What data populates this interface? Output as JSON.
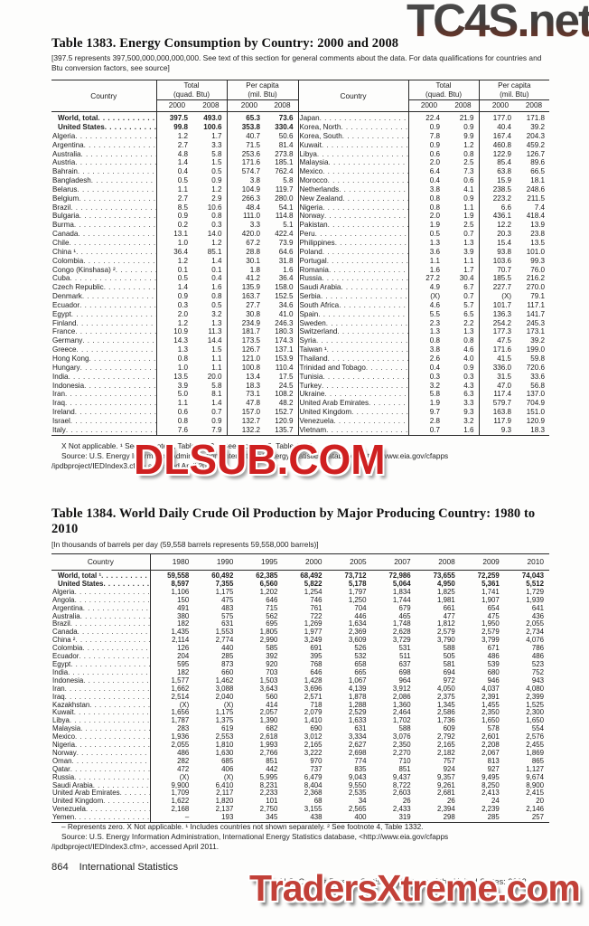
{
  "watermarks": {
    "top": "TC4S.net",
    "middle": "DLSUB.COM",
    "bottom": "TradersXtreme.com"
  },
  "t1383": {
    "title": "Table 1383. Energy Consumption by Country: 2000 and 2008",
    "bracket": "[397.5 represents 397,500,000,000,000,000. See text of this section for general comments about the data. For data qualifications for countries and Btu conversion factors, see source]",
    "header": {
      "country": "Country",
      "total1": "Total",
      "total2": "(quad. Btu)",
      "pc1": "Per capita",
      "pc2": "(mil. Btu)",
      "years": [
        "2000",
        "2008"
      ]
    },
    "rows_left": [
      [
        "World, total",
        "397.5",
        "493.0",
        "65.3",
        "73.6"
      ],
      [
        "United States",
        "99.8",
        "100.6",
        "353.8",
        "330.4"
      ],
      [
        "Algeria",
        "1.2",
        "1.7",
        "40.7",
        "50.6"
      ],
      [
        "Argentina",
        "2.7",
        "3.3",
        "71.5",
        "81.4"
      ],
      [
        "Australia",
        "4.8",
        "5.8",
        "253.6",
        "273.8"
      ],
      [
        "Austria",
        "1.4",
        "1.5",
        "171.6",
        "185.1"
      ],
      [
        "Bahrain",
        "0.4",
        "0.5",
        "574.7",
        "762.4"
      ],
      [
        "Bangladesh",
        "0.5",
        "0.9",
        "3.8",
        "5.8"
      ],
      [
        "Belarus",
        "1.1",
        "1.2",
        "104.9",
        "119.7"
      ],
      [
        "Belgium",
        "2.7",
        "2.9",
        "266.3",
        "280.0"
      ],
      [
        "Brazil",
        "8.5",
        "10.6",
        "48.4",
        "54.1"
      ],
      [
        "Bulgaria",
        "0.9",
        "0.8",
        "111.0",
        "114.8"
      ],
      [
        "Burma",
        "0.2",
        "0.3",
        "3.3",
        "5.1"
      ],
      [
        "Canada",
        "13.1",
        "14.0",
        "420.0",
        "422.4"
      ],
      [
        "Chile",
        "1.0",
        "1.2",
        "67.2",
        "73.9"
      ],
      [
        "China ¹",
        "36.4",
        "85.1",
        "28.8",
        "64.6"
      ],
      [
        "Colombia",
        "1.2",
        "1.4",
        "30.1",
        "31.8"
      ],
      [
        "Congo (Kinshasa) ²",
        "0.1",
        "0.1",
        "1.8",
        "1.6"
      ],
      [
        "Cuba",
        "0.5",
        "0.4",
        "41.2",
        "36.4"
      ],
      [
        "Czech Republic",
        "1.4",
        "1.6",
        "135.9",
        "158.0"
      ],
      [
        "Denmark",
        "0.9",
        "0.8",
        "163.7",
        "152.5"
      ],
      [
        "Ecuador",
        "0.3",
        "0.5",
        "27.7",
        "34.6"
      ],
      [
        "Egypt",
        "2.0",
        "3.2",
        "30.8",
        "41.0"
      ],
      [
        "Finland",
        "1.2",
        "1.3",
        "234.9",
        "246.3"
      ],
      [
        "France",
        "10.9",
        "11.3",
        "181.7",
        "180.3"
      ],
      [
        "Germany",
        "14.3",
        "14.4",
        "173.5",
        "174.3"
      ],
      [
        "Greece",
        "1.3",
        "1.5",
        "126.7",
        "137.1"
      ],
      [
        "Hong Kong",
        "0.8",
        "1.1",
        "121.0",
        "153.9"
      ],
      [
        "Hungary",
        "1.0",
        "1.1",
        "100.8",
        "110.4"
      ],
      [
        "India",
        "13.5",
        "20.0",
        "13.4",
        "17.5"
      ],
      [
        "Indonesia",
        "3.9",
        "5.8",
        "18.3",
        "24.5"
      ],
      [
        "Iran",
        "5.0",
        "8.1",
        "73.1",
        "108.2"
      ],
      [
        "Iraq",
        "1.1",
        "1.4",
        "47.8",
        "48.2"
      ],
      [
        "Ireland",
        "0.6",
        "0.7",
        "157.0",
        "152.7"
      ],
      [
        "Israel",
        "0.8",
        "0.9",
        "132.7",
        "120.9"
      ],
      [
        "Italy",
        "7.6",
        "7.9",
        "132.2",
        "135.7"
      ]
    ],
    "rows_right": [
      [
        "Japan",
        "22.4",
        "21.9",
        "177.0",
        "171.8"
      ],
      [
        "Korea, North",
        "0.9",
        "0.9",
        "40.4",
        "39.2"
      ],
      [
        "Korea, South",
        "7.8",
        "9.9",
        "167.4",
        "204.3"
      ],
      [
        "Kuwait",
        "0.9",
        "1.2",
        "460.8",
        "459.2"
      ],
      [
        "Libya",
        "0.6",
        "0.8",
        "122.9",
        "126.7"
      ],
      [
        "Malaysia",
        "2.0",
        "2.5",
        "85.4",
        "89.6"
      ],
      [
        "Mexico",
        "6.4",
        "7.3",
        "63.8",
        "66.5"
      ],
      [
        "Morocco",
        "0.4",
        "0.6",
        "15.9",
        "18.1"
      ],
      [
        "Netherlands",
        "3.8",
        "4.1",
        "238.5",
        "248.6"
      ],
      [
        "New Zealand",
        "0.8",
        "0.9",
        "223.2",
        "211.5"
      ],
      [
        "Nigeria",
        "0.8",
        "1.1",
        "6.6",
        "7.4"
      ],
      [
        "Norway",
        "2.0",
        "1.9",
        "436.1",
        "418.4"
      ],
      [
        "Pakistan",
        "1.9",
        "2.5",
        "12.2",
        "13.9"
      ],
      [
        "Peru",
        "0.5",
        "0.7",
        "20.3",
        "23.8"
      ],
      [
        "Philippines",
        "1.3",
        "1.3",
        "15.4",
        "13.5"
      ],
      [
        "Poland",
        "3.6",
        "3.9",
        "93.8",
        "101.0"
      ],
      [
        "Portugal",
        "1.1",
        "1.1",
        "103.6",
        "99.3"
      ],
      [
        "Romania",
        "1.6",
        "1.7",
        "70.7",
        "76.0"
      ],
      [
        "Russia",
        "27.2",
        "30.4",
        "185.5",
        "216.2"
      ],
      [
        "Saudi Arabia",
        "4.9",
        "6.7",
        "227.7",
        "270.0"
      ],
      [
        "Serbia",
        "(X)",
        "0.7",
        "(X)",
        "79.1"
      ],
      [
        "South Africa",
        "4.6",
        "5.7",
        "101.7",
        "117.1"
      ],
      [
        "Spain",
        "5.5",
        "6.5",
        "136.3",
        "141.7"
      ],
      [
        "Sweden",
        "2.3",
        "2.2",
        "254.2",
        "245.3"
      ],
      [
        "Switzerland",
        "1.3",
        "1.3",
        "177.3",
        "173.1"
      ],
      [
        "Syria",
        "0.8",
        "0.8",
        "47.5",
        "39.2"
      ],
      [
        "Taiwan ¹",
        "3.8",
        "4.6",
        "171.6",
        "199.0"
      ],
      [
        "Thailand",
        "2.6",
        "4.0",
        "41.5",
        "59.8"
      ],
      [
        "Trinidad and Tobago",
        "0.4",
        "0.9",
        "336.0",
        "720.6"
      ],
      [
        "Tunisia",
        "0.3",
        "0.3",
        "31.5",
        "33.6"
      ],
      [
        "Turkey",
        "3.2",
        "4.3",
        "47.0",
        "56.8"
      ],
      [
        "Ukraine",
        "5.8",
        "6.3",
        "117.4",
        "137.0"
      ],
      [
        "United Arab Emirates",
        "1.9",
        "3.3",
        "579.7",
        "704.9"
      ],
      [
        "United Kingdom",
        "9.7",
        "9.3",
        "163.8",
        "151.0"
      ],
      [
        "Venezuela",
        "2.8",
        "3.2",
        "117.9",
        "120.9"
      ],
      [
        "Vietnam",
        "0.7",
        "1.6",
        "9.3",
        "18.3"
      ]
    ],
    "footnote": "X Not applicable. ¹ See footnote 4, Table 1332. ² See footnote 5, Table 1332.",
    "source_l1": "Source: U.S. Energy Information Administration, International Energy Statistics database, <http://www.eia.gov/cfapps",
    "source_l2": "/ipdbproject/IEDIndex3.cfm> accessed April 2011."
  },
  "t1384": {
    "title": "Table 1384. World Daily Crude Oil Production by Major Producing Country: 1980 to 2010",
    "bracket": "[In thousands of barrels per day (59,558 barrels represents 59,558,000 barrels)]",
    "country_header": "Country",
    "years": [
      "1980",
      "1990",
      "1995",
      "2000",
      "2005",
      "2007",
      "2008",
      "2009",
      "2010"
    ],
    "rows": [
      [
        "World, total ¹",
        "59,558",
        "60,492",
        "62,385",
        "68,492",
        "73,712",
        "72,986",
        "73,655",
        "72,259",
        "74,043"
      ],
      [
        "United States",
        "8,597",
        "7,355",
        "6,560",
        "5,822",
        "5,178",
        "5,064",
        "4,950",
        "5,361",
        "5,512"
      ],
      [
        "Algeria",
        "1,106",
        "1,175",
        "1,202",
        "1,254",
        "1,797",
        "1,834",
        "1,825",
        "1,741",
        "1,729"
      ],
      [
        "Angola",
        "150",
        "475",
        "646",
        "746",
        "1,250",
        "1,744",
        "1,981",
        "1,907",
        "1,939"
      ],
      [
        "Argentina",
        "491",
        "483",
        "715",
        "761",
        "704",
        "679",
        "661",
        "654",
        "641"
      ],
      [
        "Australia",
        "380",
        "575",
        "562",
        "722",
        "446",
        "465",
        "477",
        "475",
        "436"
      ],
      [
        "Brazil",
        "182",
        "631",
        "695",
        "1,269",
        "1,634",
        "1,748",
        "1,812",
        "1,950",
        "2,055"
      ],
      [
        "Canada",
        "1,435",
        "1,553",
        "1,805",
        "1,977",
        "2,369",
        "2,628",
        "2,579",
        "2,579",
        "2,734"
      ],
      [
        "China ²",
        "2,114",
        "2,774",
        "2,990",
        "3,249",
        "3,609",
        "3,729",
        "3,790",
        "3,799",
        "4,076"
      ],
      [
        "Colombia",
        "126",
        "440",
        "585",
        "691",
        "526",
        "531",
        "588",
        "671",
        "786"
      ],
      [
        "Ecuador",
        "204",
        "285",
        "392",
        "395",
        "532",
        "511",
        "505",
        "486",
        "486"
      ],
      [
        "Egypt",
        "595",
        "873",
        "920",
        "768",
        "658",
        "637",
        "581",
        "539",
        "523"
      ],
      [
        "India",
        "182",
        "660",
        "703",
        "646",
        "665",
        "698",
        "694",
        "680",
        "752"
      ],
      [
        "Indonesia",
        "1,577",
        "1,462",
        "1,503",
        "1,428",
        "1,067",
        "964",
        "972",
        "946",
        "943"
      ],
      [
        "Iran",
        "1,662",
        "3,088",
        "3,643",
        "3,696",
        "4,139",
        "3,912",
        "4,050",
        "4,037",
        "4,080"
      ],
      [
        "Iraq",
        "2,514",
        "2,040",
        "560",
        "2,571",
        "1,878",
        "2,086",
        "2,375",
        "2,391",
        "2,399"
      ],
      [
        "Kazakhstan",
        "(X)",
        "(X)",
        "414",
        "718",
        "1,288",
        "1,360",
        "1,345",
        "1,455",
        "1,525"
      ],
      [
        "Kuwait",
        "1,656",
        "1,175",
        "2,057",
        "2,079",
        "2,529",
        "2,464",
        "2,586",
        "2,350",
        "2,300"
      ],
      [
        "Libya",
        "1,787",
        "1,375",
        "1,390",
        "1,410",
        "1,633",
        "1,702",
        "1,736",
        "1,650",
        "1,650"
      ],
      [
        "Malaysia",
        "283",
        "619",
        "682",
        "690",
        "631",
        "588",
        "609",
        "578",
        "554"
      ],
      [
        "Mexico",
        "1,936",
        "2,553",
        "2,618",
        "3,012",
        "3,334",
        "3,076",
        "2,792",
        "2,601",
        "2,576"
      ],
      [
        "Nigeria",
        "2,055",
        "1,810",
        "1,993",
        "2,165",
        "2,627",
        "2,350",
        "2,165",
        "2,208",
        "2,455"
      ],
      [
        "Norway",
        "486",
        "1,630",
        "2,766",
        "3,222",
        "2,698",
        "2,270",
        "2,182",
        "2,067",
        "1,869"
      ],
      [
        "Oman",
        "282",
        "685",
        "851",
        "970",
        "774",
        "710",
        "757",
        "813",
        "865"
      ],
      [
        "Qatar",
        "472",
        "406",
        "442",
        "737",
        "835",
        "851",
        "924",
        "927",
        "1,127"
      ],
      [
        "Russia",
        "(X)",
        "(X)",
        "5,995",
        "6,479",
        "9,043",
        "9,437",
        "9,357",
        "9,495",
        "9,674"
      ],
      [
        "Saudi Arabia",
        "9,900",
        "6,410",
        "8,231",
        "8,404",
        "9,550",
        "8,722",
        "9,261",
        "8,250",
        "8,900"
      ],
      [
        "United Arab Emirates",
        "1,709",
        "2,117",
        "2,233",
        "2,368",
        "2,535",
        "2,603",
        "2,681",
        "2,413",
        "2,415"
      ],
      [
        "United Kingdom",
        "1,622",
        "1,820",
        "101",
        "68",
        "34",
        "26",
        "26",
        "24",
        "20"
      ],
      [
        "Venezuela",
        "2,168",
        "2,137",
        "2,750",
        "3,155",
        "2,565",
        "2,433",
        "2,394",
        "2,239",
        "2,146"
      ],
      [
        "Yemen",
        "–",
        "193",
        "345",
        "438",
        "400",
        "319",
        "298",
        "285",
        "257"
      ]
    ],
    "footnote": "– Represents zero. X Not applicable. ¹ Includes countries not shown separately. ² See footnote 4, Table 1332.",
    "source_l1": "Source: U.S. Energy Information Administration, International Energy Statistics database, <http://www.eia.gov/cfapps",
    "source_l2": "/ipdbproject/IEDIndex3.cfm>, accessed April 2011."
  },
  "footer": {
    "page": "864",
    "section": "International Statistics",
    "credit": "U.S. Census Bureau, Statistical Abstract of the United States: 2012"
  }
}
